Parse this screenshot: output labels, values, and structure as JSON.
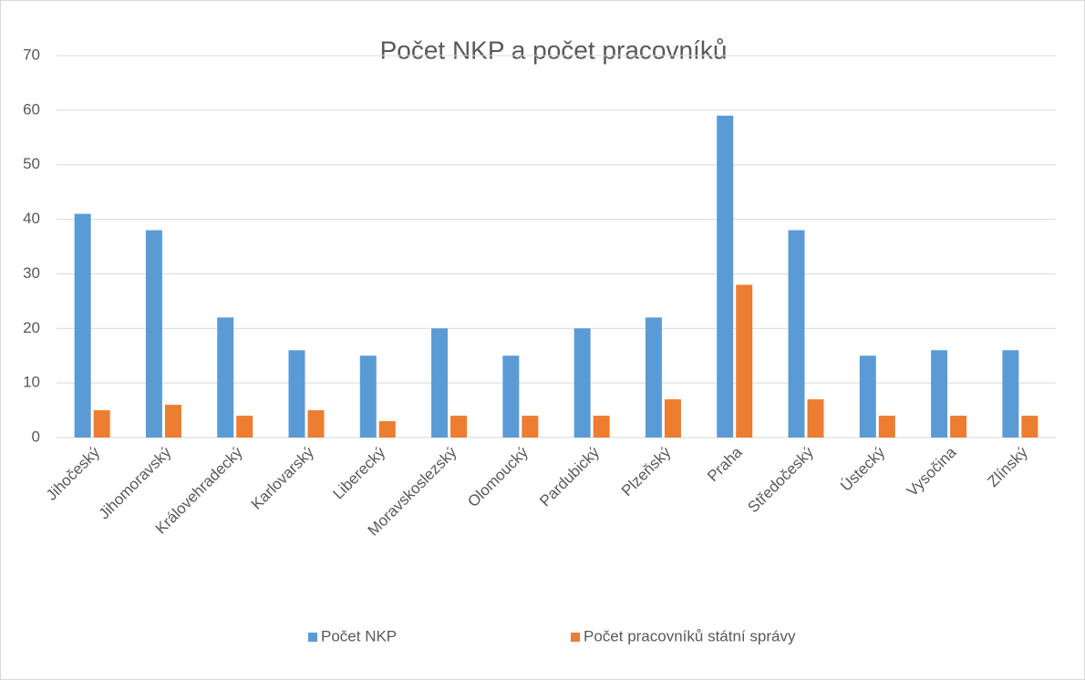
{
  "chart_data": {
    "type": "bar",
    "title": "Počet NKP a počet pracovníků",
    "categories": [
      "Jihočeský",
      "Jihomoravský",
      "Královehradecký",
      "Karlovarský",
      "Liberecký",
      "Moravskoslezský",
      "Olomoucký",
      "Pardubický",
      "Plzeňský",
      "Praha",
      "Středočeský",
      "Ústecký",
      "Vysočina",
      "Zlínský"
    ],
    "series": [
      {
        "name": "Počet NKP",
        "color": "#5b9bd5",
        "values": [
          41,
          38,
          22,
          16,
          15,
          20,
          15,
          20,
          22,
          59,
          38,
          15,
          16,
          16
        ]
      },
      {
        "name": "Počet pracovníků státní správy",
        "color": "#ed7d31",
        "values": [
          5,
          6,
          4,
          5,
          3,
          4,
          4,
          4,
          7,
          28,
          7,
          4,
          4,
          4
        ]
      }
    ],
    "ylim": [
      0,
      70
    ],
    "yticks": [
      0,
      10,
      20,
      30,
      40,
      50,
      60,
      70
    ],
    "grid": true,
    "legend": "bottom"
  }
}
